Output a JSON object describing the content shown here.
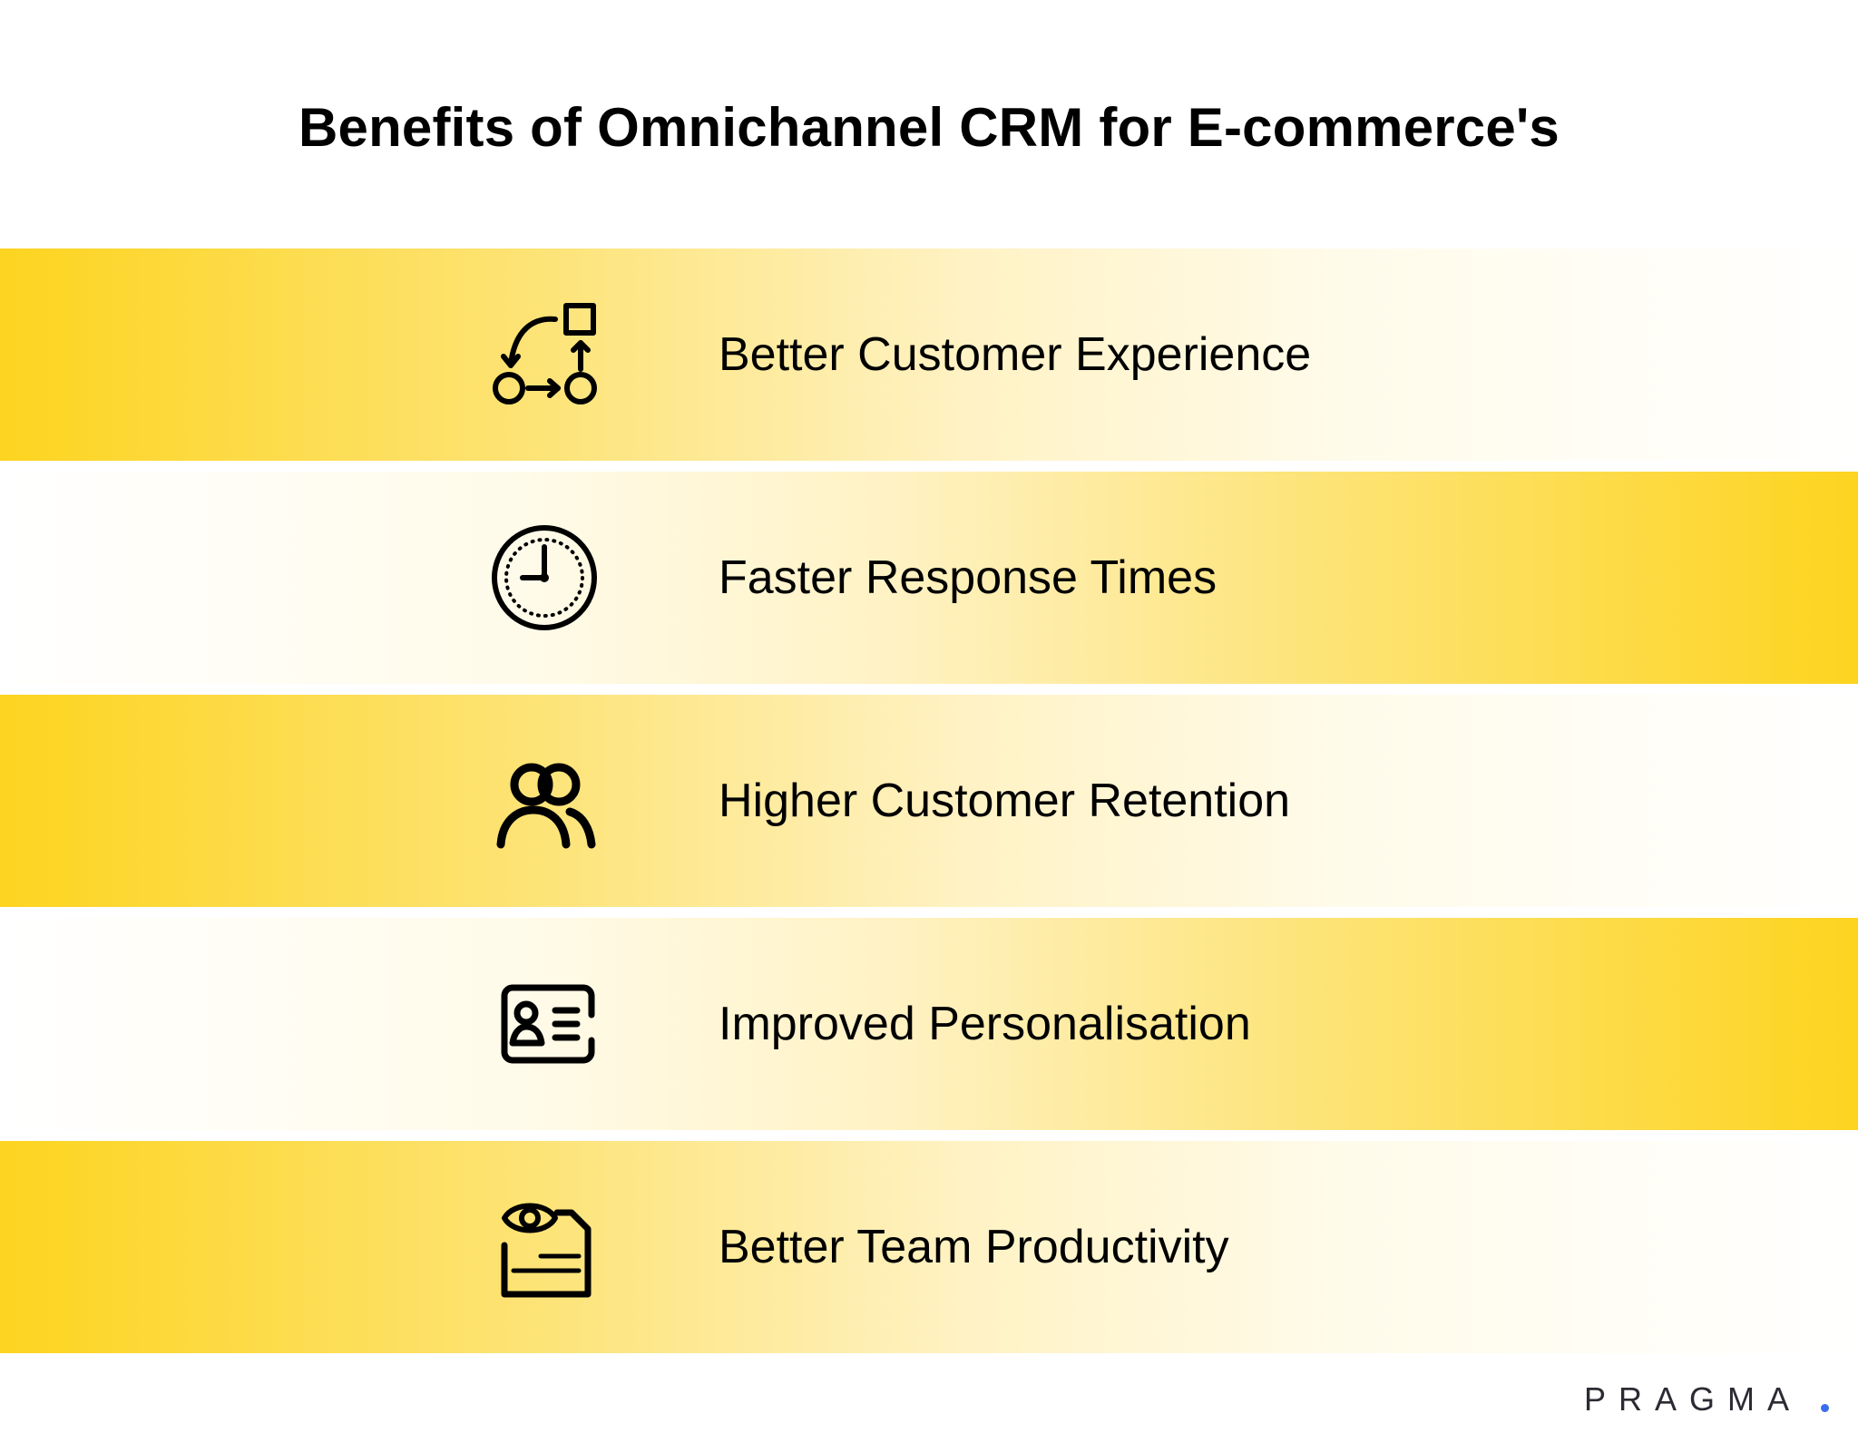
{
  "title": "Benefits of Omnichannel CRM for E-commerce's",
  "items": [
    {
      "label": "Better Customer Experience",
      "icon": "workflow-icon"
    },
    {
      "label": "Faster Response Times",
      "icon": "clock-icon"
    },
    {
      "label": "Higher Customer Retention",
      "icon": "users-icon"
    },
    {
      "label": "Improved Personalisation",
      "icon": "contact-card-icon"
    },
    {
      "label": "Better Team Productivity",
      "icon": "eye-document-icon"
    }
  ],
  "brand": "PRAGMA",
  "colors": {
    "band_yellow": "#fdd41f",
    "text": "#000000",
    "brand_dot": "#3b6cf0"
  }
}
